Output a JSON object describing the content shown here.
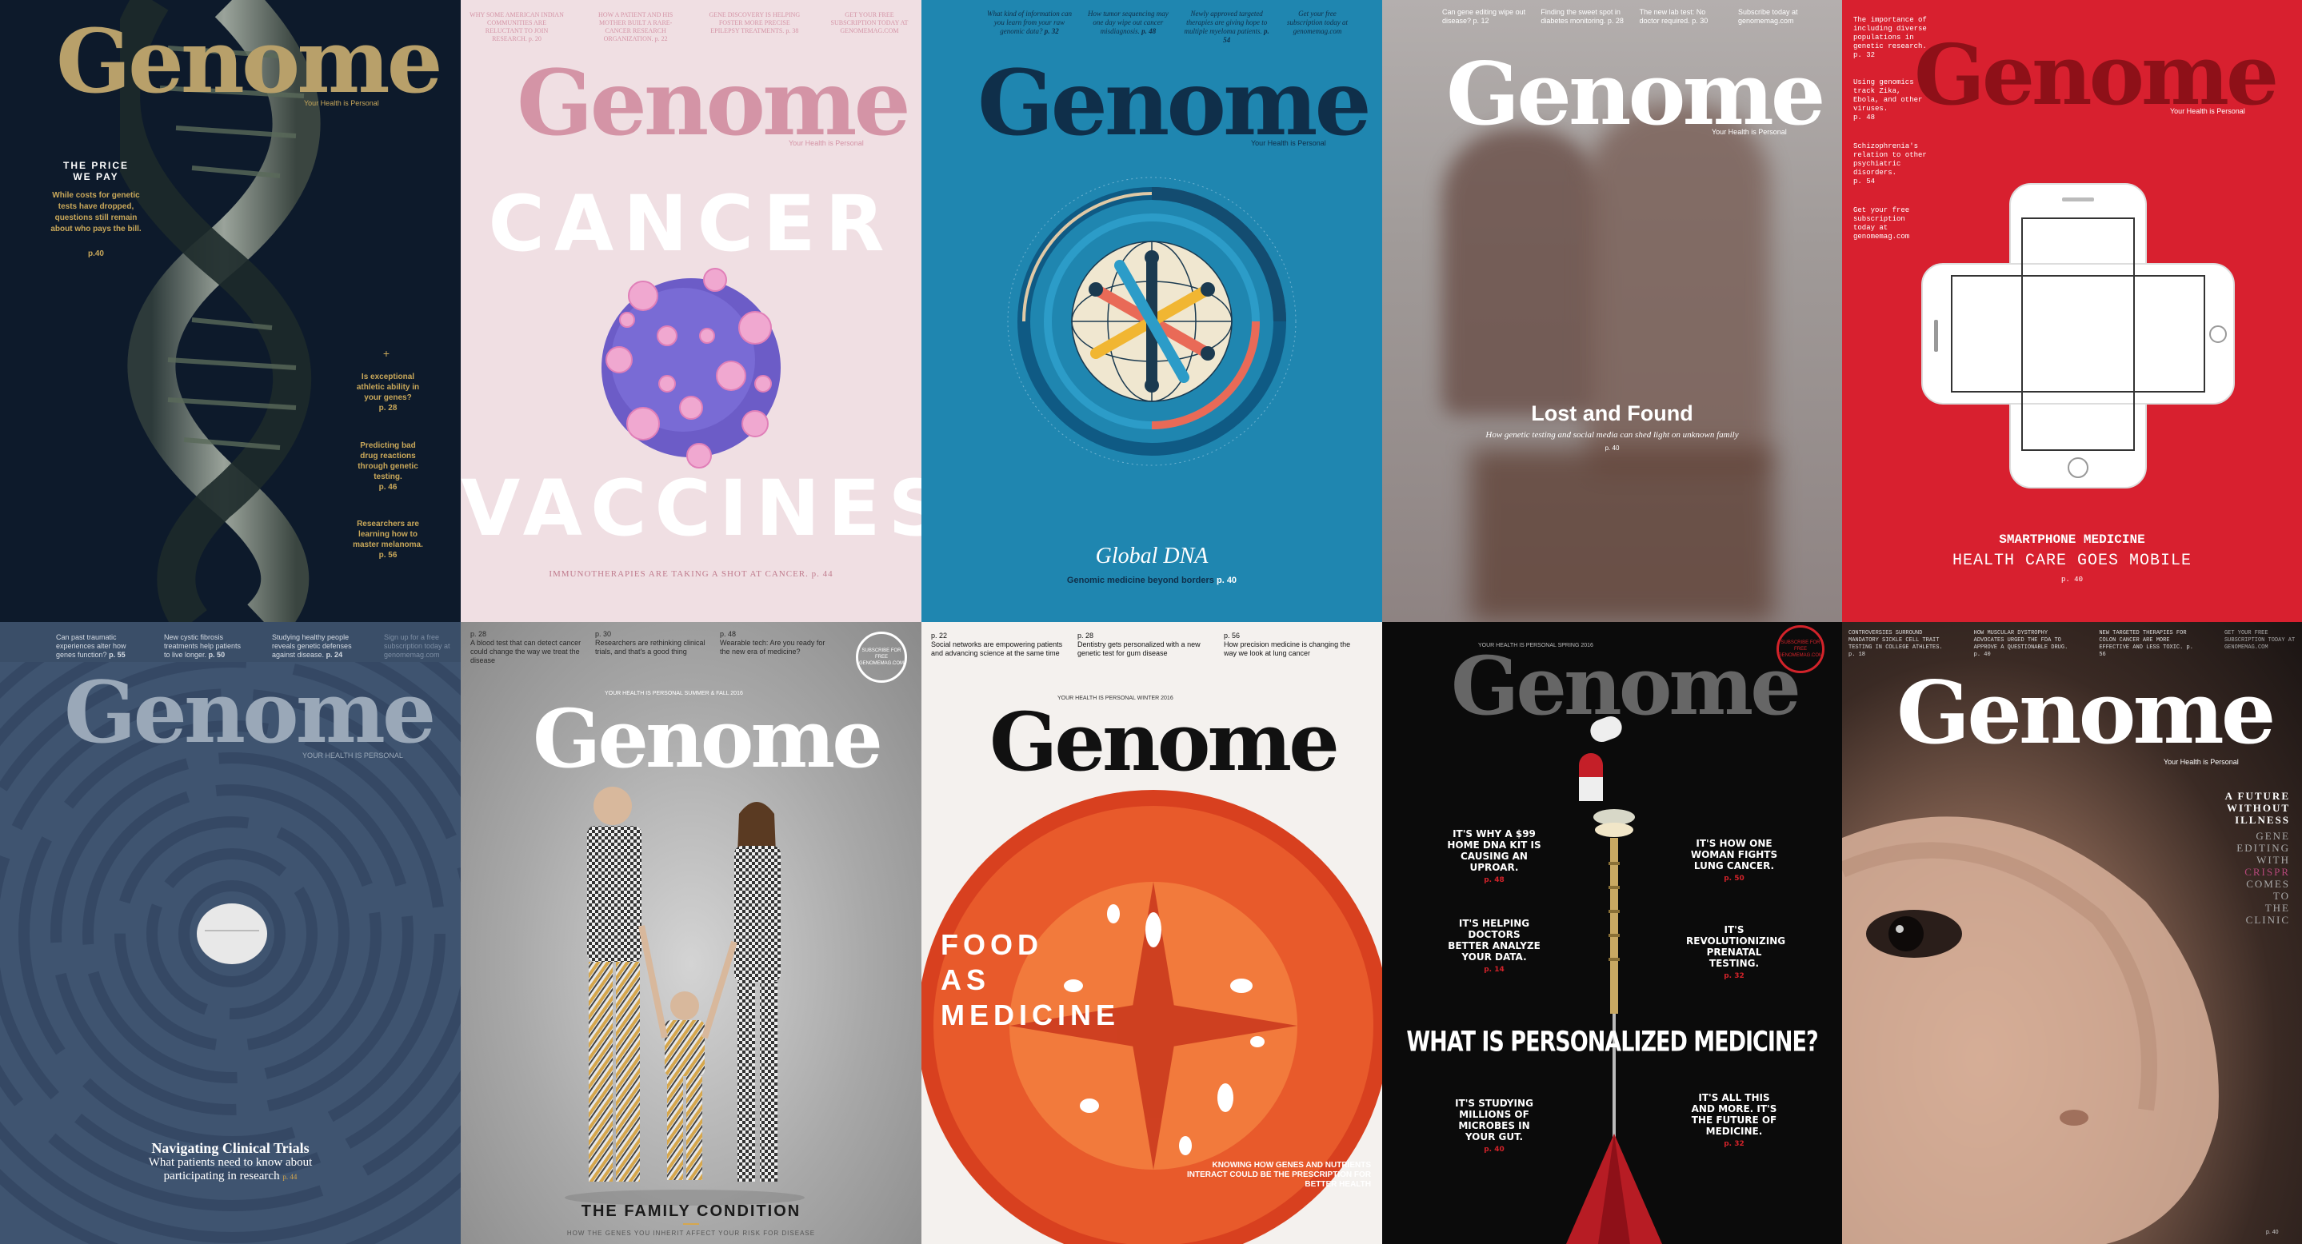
{
  "covers": [
    {
      "masthead": "Genome",
      "tagline": "Your Health is Personal",
      "headline": "THE PRICE WE PAY",
      "dek": "While costs for genetic tests have dropped, questions still remain about who pays the bill.",
      "page": "p.40",
      "side": [
        {
          "text": "Is exceptional athletic ability in your genes?",
          "page": "p. 28"
        },
        {
          "text": "Predicting bad drug reactions through genetic testing.",
          "page": "p. 46"
        },
        {
          "text": "Researchers are learning how to master melanoma.",
          "page": "p. 56"
        }
      ],
      "colors": {
        "bg": "#0d1a2b",
        "mast": "#b8a06a",
        "accent": "#c9a85a"
      }
    },
    {
      "masthead": "Genome",
      "tagline": "Your Health is Personal",
      "top": [
        {
          "text": "WHY SOME AMERICAN INDIAN COMMUNITIES ARE RELUCTANT TO JOIN RESEARCH.",
          "page": "p. 20"
        },
        {
          "text": "HOW A PATIENT AND HIS MOTHER BUILT A RARE-CANCER RESEARCH ORGANIZATION.",
          "page": "p. 22"
        },
        {
          "text": "GENE DISCOVERY IS HELPING FOSTER MORE PRECISE EPILEPSY TREATMENTS.",
          "page": "p. 38"
        },
        {
          "text": "GET YOUR FREE SUBSCRIPTION TODAY AT GENOMEMAG.COM",
          "page": ""
        }
      ],
      "title_top": "CANCER",
      "title_bottom": "VACCINES",
      "dek": "IMMUNOTHERAPIES ARE TAKING A SHOT AT CANCER.",
      "page": "p. 44",
      "colors": {
        "bg": "#f0dfe3",
        "mast": "#d494a6",
        "title": "#ffffff"
      }
    },
    {
      "masthead": "Genome",
      "tagline": "Your Health is Personal",
      "top": [
        {
          "text": "What kind of information can you learn from your raw genomic data?",
          "page": "p. 32"
        },
        {
          "text": "How tumor sequencing may one day wipe out cancer misdiagnosis.",
          "page": "p. 48"
        },
        {
          "text": "Newly approved targeted therapies are giving hope to multiple myeloma patients.",
          "page": "p. 54"
        },
        {
          "text": "Get your free subscription today at genomemag.com",
          "page": ""
        }
      ],
      "title": "Global DNA",
      "dek": "Genomic medicine beyond borders",
      "page": "p. 40",
      "colors": {
        "bg": "#1f86b0",
        "mast": "#0f2f4a"
      }
    },
    {
      "masthead": "Genome",
      "tagline": "Your Health is Personal",
      "top": [
        {
          "text": "Can gene editing wipe out disease?",
          "page": "p. 12"
        },
        {
          "text": "Finding the sweet spot in diabetes monitoring.",
          "page": "p. 28"
        },
        {
          "text": "The new lab test: No doctor required.",
          "page": "p. 30"
        },
        {
          "text": "Subscribe today at genomemag.com",
          "page": ""
        }
      ],
      "title": "Lost and Found",
      "dek": "How genetic testing and social media can shed light on unknown family",
      "page": "p. 40",
      "colors": {
        "bg": "#a9a4a4",
        "mast": "#ffffff"
      }
    },
    {
      "masthead": "Genome",
      "tagline": "Your Health is Personal",
      "side": [
        {
          "text": "The importance of including diverse populations in genetic research.",
          "page": "p. 32"
        },
        {
          "text": "Using genomics to track Zika, Ebola, and other viruses.",
          "page": "p. 48"
        },
        {
          "text": "Schizophrenia's relation to other psychiatric disorders.",
          "page": "p. 54"
        },
        {
          "text": "Get your free subscription today at genomemag.com",
          "page": ""
        }
      ],
      "title": "SMARTPHONE MEDICINE",
      "subtitle": "HEALTH CARE GOES MOBILE",
      "page": "p. 40",
      "colors": {
        "bg": "#d8202f",
        "mast": "#8e1018"
      }
    },
    {
      "masthead": "Genome",
      "tagline": "YOUR HEALTH IS PERSONAL",
      "top": [
        {
          "text": "Can past traumatic experiences alter how genes function?",
          "page": "p. 55"
        },
        {
          "text": "New cystic fibrosis treatments help patients to live longer.",
          "page": "p. 50"
        },
        {
          "text": "Studying healthy people reveals genetic defenses against disease.",
          "page": "p. 24"
        },
        {
          "text": "Sign up for a free subscription today at genomemag.com",
          "page": ""
        }
      ],
      "title": "Navigating Clinical Trials",
      "dek": "What patients need to know about participating in research",
      "page": "p. 44",
      "colors": {
        "bg": "#3f5470",
        "mast": "#9aa8b8"
      }
    },
    {
      "masthead": "Genome",
      "tagline": "YOUR HEALTH IS PERSONAL",
      "issue": "SUMMER & FALL 2016",
      "top": [
        {
          "text": "A blood test that can detect cancer could change the way we treat the disease",
          "page": "p. 28"
        },
        {
          "text": "Researchers are rethinking clinical trials, and that's a good thing",
          "page": "p. 30"
        },
        {
          "text": "Wearable tech: Are you ready for the new era of medicine?",
          "page": "p. 48"
        }
      ],
      "badge": "SUBSCRIBE FOR FREE GENOMEMAG.COM",
      "title": "THE FAMILY CONDITION",
      "dek": "HOW THE GENES YOU INHERIT AFFECT YOUR RISK FOR DISEASE",
      "colors": {
        "bg": "#a6a6a6",
        "mast": "#ffffff"
      }
    },
    {
      "masthead": "Genome",
      "tagline": "YOUR HEALTH IS PERSONAL",
      "issue": "WINTER 2016",
      "top": [
        {
          "text": "Social networks are empowering patients and advancing science at the same time",
          "page": "p. 22"
        },
        {
          "text": "Dentistry gets personalized with a new genetic test for gum disease",
          "page": "p. 28"
        },
        {
          "text": "How precision medicine is changing the way we look at lung cancer",
          "page": "p. 56"
        }
      ],
      "title_lines": [
        "FOOD",
        "AS",
        "MEDICINE"
      ],
      "dek": "KNOWING HOW GENES AND NUTRIENTS INTERACT COULD BE THE PRESCRIPTION FOR BETTER HEALTH",
      "colors": {
        "bg": "#f4f1ee",
        "mast": "#111111"
      }
    },
    {
      "masthead": "Genome",
      "tagline": "YOUR HEALTH IS PERSONAL",
      "issue": "SPRING 2016",
      "badge": "SUBSCRIBE FOR FREE GENOMEMAG.COM",
      "left": [
        {
          "text": "IT'S WHY A $99 HOME DNA KIT IS CAUSING AN UPROAR.",
          "page": "p. 48"
        },
        {
          "text": "IT'S HELPING DOCTORS BETTER ANALYZE YOUR DATA.",
          "page": "p. 14"
        },
        {
          "text": "IT'S STUDYING MILLIONS OF MICROBES IN YOUR GUT.",
          "page": "p. 40"
        }
      ],
      "right": [
        {
          "text": "IT'S HOW ONE WOMAN FIGHTS LUNG CANCER.",
          "page": "p. 50"
        },
        {
          "text": "IT'S REVOLUTIONIZING PRENATAL TESTING.",
          "page": "p. 32"
        },
        {
          "text": "IT'S ALL THIS AND MORE. IT'S THE FUTURE OF MEDICINE.",
          "page": "p. 32"
        }
      ],
      "title": "WHAT IS PERSONALIZED MEDICINE?",
      "colors": {
        "bg": "#0b0b0b",
        "mast": "#666666",
        "accent": "#d2232a"
      }
    },
    {
      "masthead": "Genome",
      "tagline": "Your Health is Personal",
      "top": [
        {
          "text": "CONTROVERSIES SURROUND MANDATORY SICKLE CELL TRAIT TESTING IN COLLEGE ATHLETES.",
          "page": "p. 18"
        },
        {
          "text": "HOW MUSCULAR DYSTROPHY ADVOCATES URGED THE FDA TO APPROVE A QUESTIONABLE DRUG.",
          "page": "p. 40"
        },
        {
          "text": "NEW TARGETED THERAPIES FOR COLON CANCER ARE MORE EFFECTIVE AND LESS TOXIC.",
          "page": "p. 56"
        },
        {
          "text": "GET YOUR FREE SUBSCRIPTION TODAY AT GENOMEMAG.COM",
          "page": ""
        }
      ],
      "title_lines": [
        "A FUTURE",
        "WITHOUT",
        "ILLNESS"
      ],
      "dek_lines": [
        "GENE",
        "EDITING",
        "WITH",
        "CRISPR",
        "COMES",
        "TO",
        "THE",
        "CLINIC"
      ],
      "page": "p. 40",
      "colors": {
        "bg": "#1a1413",
        "mast": "#ffffff",
        "accent": "#b5477a"
      }
    }
  ]
}
